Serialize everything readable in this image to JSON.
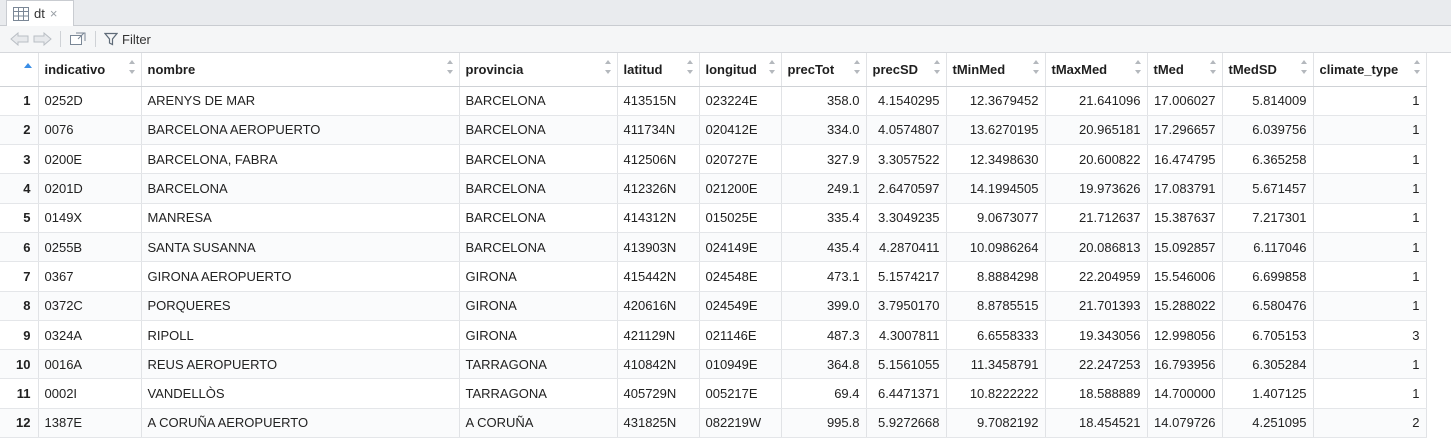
{
  "tab": {
    "label": "dt",
    "close": "×"
  },
  "toolbar": {
    "filter_label": "Filter"
  },
  "columns": [
    "indicativo",
    "nombre",
    "provincia",
    "latitud",
    "longitud",
    "precTot",
    "precSD",
    "tMinMed",
    "tMaxMed",
    "tMed",
    "tMedSD",
    "climate_type"
  ],
  "rows": [
    [
      "1",
      "0252D",
      "ARENYS DE MAR",
      "BARCELONA",
      "413515N",
      "023224E",
      "358.0",
      "4.1540295",
      "12.3679452",
      "21.641096",
      "17.006027",
      "5.814009",
      "1"
    ],
    [
      "2",
      "0076",
      "BARCELONA AEROPUERTO",
      "BARCELONA",
      "411734N",
      "020412E",
      "334.0",
      "4.0574807",
      "13.6270195",
      "20.965181",
      "17.296657",
      "6.039756",
      "1"
    ],
    [
      "3",
      "0200E",
      "BARCELONA, FABRA",
      "BARCELONA",
      "412506N",
      "020727E",
      "327.9",
      "3.3057522",
      "12.3498630",
      "20.600822",
      "16.474795",
      "6.365258",
      "1"
    ],
    [
      "4",
      "0201D",
      "BARCELONA",
      "BARCELONA",
      "412326N",
      "021200E",
      "249.1",
      "2.6470597",
      "14.1994505",
      "19.973626",
      "17.083791",
      "5.671457",
      "1"
    ],
    [
      "5",
      "0149X",
      "MANRESA",
      "BARCELONA",
      "414312N",
      "015025E",
      "335.4",
      "3.3049235",
      "9.0673077",
      "21.712637",
      "15.387637",
      "7.217301",
      "1"
    ],
    [
      "6",
      "0255B",
      "SANTA SUSANNA",
      "BARCELONA",
      "413903N",
      "024149E",
      "435.4",
      "4.2870411",
      "10.0986264",
      "20.086813",
      "15.092857",
      "6.117046",
      "1"
    ],
    [
      "7",
      "0367",
      "GIRONA AEROPUERTO",
      "GIRONA",
      "415442N",
      "024548E",
      "473.1",
      "5.1574217",
      "8.8884298",
      "22.204959",
      "15.546006",
      "6.699858",
      "1"
    ],
    [
      "8",
      "0372C",
      "PORQUERES",
      "GIRONA",
      "420616N",
      "024549E",
      "399.0",
      "3.7950170",
      "8.8785515",
      "21.701393",
      "15.288022",
      "6.580476",
      "1"
    ],
    [
      "9",
      "0324A",
      "RIPOLL",
      "GIRONA",
      "421129N",
      "021146E",
      "487.3",
      "4.3007811",
      "6.6558333",
      "19.343056",
      "12.998056",
      "6.705153",
      "3"
    ],
    [
      "10",
      "0016A",
      "REUS AEROPUERTO",
      "TARRAGONA",
      "410842N",
      "010949E",
      "364.8",
      "5.1561055",
      "11.3458791",
      "22.247253",
      "16.793956",
      "6.305284",
      "1"
    ],
    [
      "11",
      "0002I",
      "VANDELLÒS",
      "TARRAGONA",
      "405729N",
      "005217E",
      "69.4",
      "6.4471371",
      "10.8222222",
      "18.588889",
      "14.700000",
      "1.407125",
      "1"
    ],
    [
      "12",
      "1387E",
      "A CORUÑA AEROPUERTO",
      "A CORUÑA",
      "431825N",
      "082219W",
      "995.8",
      "5.9272668",
      "9.7082192",
      "18.454521",
      "14.079726",
      "4.251095",
      "2"
    ]
  ]
}
